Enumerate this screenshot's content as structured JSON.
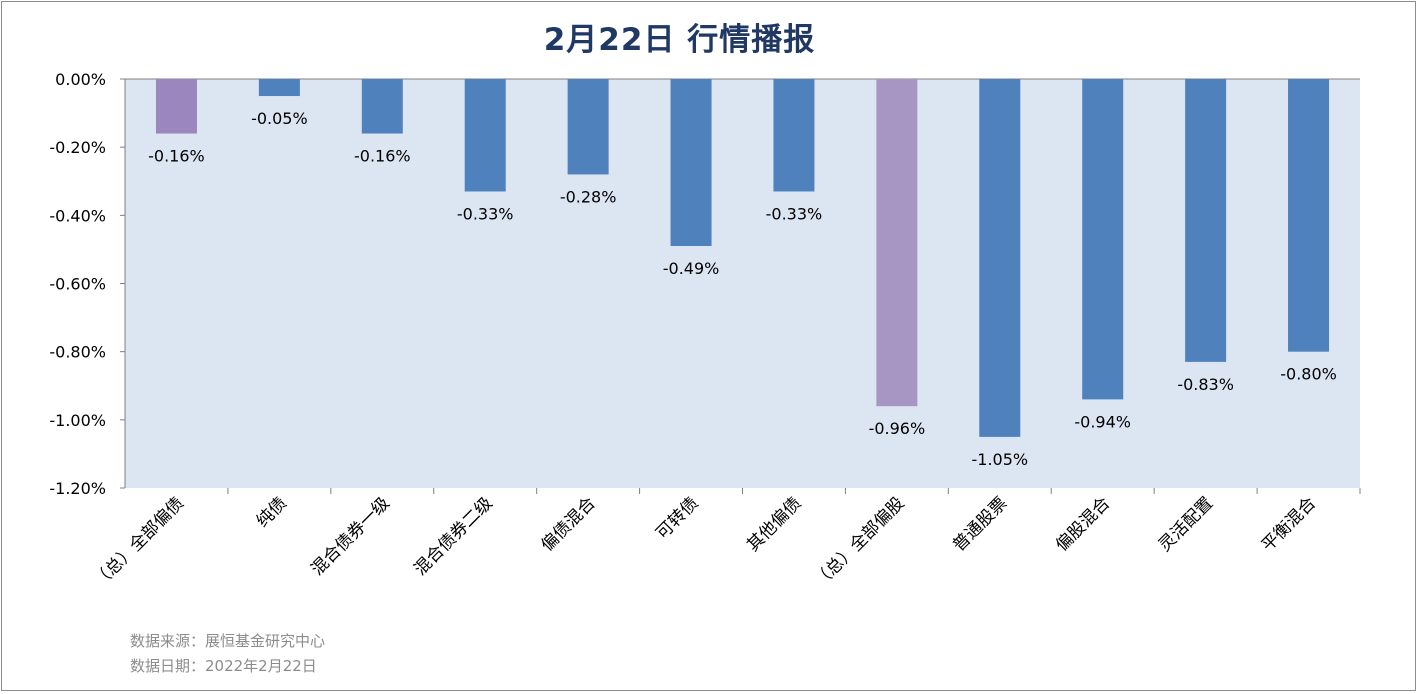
{
  "chart_data": {
    "type": "bar",
    "title": "2月22日  行情播报",
    "categories": [
      "（总）全部偏债",
      "纯债",
      "混合债券一级",
      "混合债券二级",
      "偏债混合",
      "可转债",
      "其他偏债",
      "（总）全部偏股",
      "普通股票",
      "偏股混合",
      "灵活配置",
      "平衡混合"
    ],
    "values": [
      -0.16,
      -0.05,
      -0.16,
      -0.33,
      -0.28,
      -0.49,
      -0.33,
      -0.96,
      -1.05,
      -0.94,
      -0.83,
      -0.8
    ],
    "value_labels": [
      "-0.16%",
      "-0.05%",
      "-0.16%",
      "-0.33%",
      "-0.28%",
      "-0.49%",
      "-0.33%",
      "-0.96%",
      "-1.05%",
      "-0.94%",
      "-0.83%",
      "-0.80%"
    ],
    "highlight": [
      true,
      false,
      false,
      false,
      false,
      false,
      false,
      true,
      false,
      false,
      false,
      false
    ],
    "ylim": [
      -1.2,
      0
    ],
    "yticks": [
      0,
      -0.2,
      -0.4,
      -0.6,
      -0.8,
      -1.0,
      -1.2
    ],
    "ytick_labels": [
      "0.00%",
      "-0.20%",
      "-0.40%",
      "-0.60%",
      "-0.80%",
      "-1.00%",
      "-1.20%"
    ],
    "xlabel": "",
    "ylabel": "",
    "grid": false,
    "colors": {
      "bar": "#4f81bd",
      "bar_highlight_first": "#9b86bd",
      "bar_highlight_second": "#a795c3",
      "plot_background": "#dce6f2",
      "title": "#1f3864",
      "text": "#000000",
      "axis": "#808080"
    }
  },
  "footer": {
    "source": "数据来源：展恒基金研究中心",
    "date": "数据日期：2022年2月22日"
  }
}
